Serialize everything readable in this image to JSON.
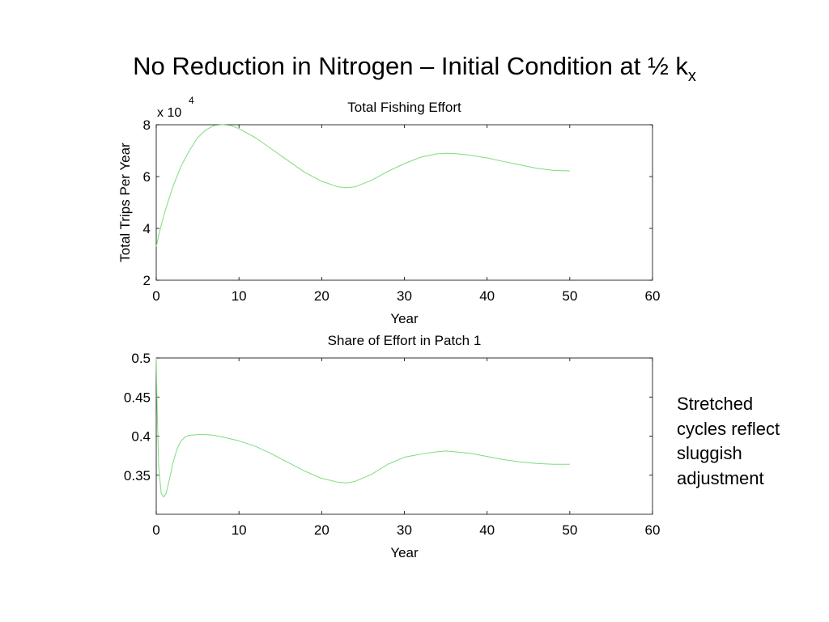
{
  "slide": {
    "title_main": "No Reduction in Nitrogen – Initial Condition at ½ k",
    "title_subscript": "x",
    "annotation_lines": [
      "Stretched",
      "cycles reflect",
      "sluggish",
      "adjustment"
    ]
  },
  "chart_data": [
    {
      "type": "line",
      "title": "Total Fishing Effort",
      "xlabel": "Year",
      "ylabel": "Total Trips Per Year",
      "exponent_label": "x 10",
      "exponent_power": "4",
      "xlim": [
        0,
        60
      ],
      "ylim": [
        2,
        8
      ],
      "xticks": [
        0,
        10,
        20,
        30,
        40,
        50,
        60
      ],
      "yticks": [
        2,
        4,
        6,
        8
      ],
      "grid": false,
      "series": [
        {
          "color": "#7ddc7d",
          "x": [
            0,
            0.5,
            1,
            2,
            3,
            4,
            5,
            6,
            7,
            8,
            9,
            10,
            12,
            14,
            16,
            18,
            20,
            22,
            23,
            24,
            26,
            28,
            30,
            32,
            34,
            35,
            36,
            38,
            40,
            42,
            44,
            46,
            48,
            50
          ],
          "y": [
            3.3,
            4.0,
            4.6,
            5.6,
            6.4,
            7.0,
            7.5,
            7.8,
            7.97,
            8.0,
            7.97,
            7.85,
            7.5,
            7.05,
            6.6,
            6.15,
            5.82,
            5.6,
            5.57,
            5.6,
            5.85,
            6.2,
            6.5,
            6.75,
            6.88,
            6.9,
            6.89,
            6.82,
            6.72,
            6.58,
            6.45,
            6.32,
            6.24,
            6.22
          ]
        }
      ]
    },
    {
      "type": "line",
      "title": "Share of Effort in Patch 1",
      "xlabel": "Year",
      "ylabel": "",
      "xlim": [
        0,
        60
      ],
      "ylim": [
        0.3,
        0.5
      ],
      "xticks": [
        0,
        10,
        20,
        30,
        40,
        50,
        60
      ],
      "yticks": [
        0.35,
        0.4,
        0.45,
        0.5
      ],
      "ytick_labels": [
        "0.35",
        "0.4",
        "0.45",
        "0.5"
      ],
      "grid": false,
      "series": [
        {
          "color": "#7ddc7d",
          "x": [
            0,
            0.1,
            0.3,
            0.6,
            0.9,
            1.2,
            1.6,
            2,
            2.5,
            3,
            3.5,
            4,
            5,
            6,
            7,
            8,
            10,
            12,
            14,
            16,
            18,
            20,
            22,
            23,
            24,
            26,
            28,
            30,
            32,
            34,
            35,
            36,
            38,
            40,
            42,
            44,
            46,
            48,
            50
          ],
          "y": [
            0.5,
            0.44,
            0.36,
            0.327,
            0.322,
            0.327,
            0.345,
            0.365,
            0.383,
            0.394,
            0.399,
            0.401,
            0.402,
            0.402,
            0.401,
            0.399,
            0.394,
            0.387,
            0.377,
            0.366,
            0.355,
            0.346,
            0.341,
            0.34,
            0.342,
            0.351,
            0.364,
            0.373,
            0.377,
            0.38,
            0.381,
            0.38,
            0.378,
            0.374,
            0.37,
            0.367,
            0.365,
            0.364,
            0.364
          ]
        }
      ]
    }
  ]
}
